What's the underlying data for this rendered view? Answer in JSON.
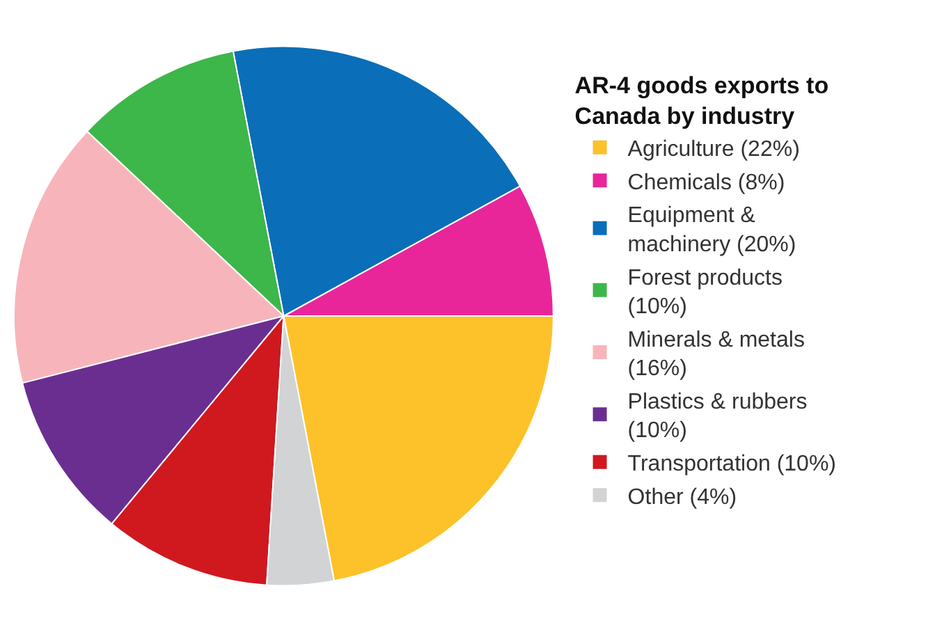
{
  "chart_data": {
    "type": "pie",
    "legend_title": "AR-4 goods exports to Canada by industry",
    "legend": "right",
    "categories": [
      "Agriculture (22%)",
      "Chemicals (8%)",
      "Equipment & machinery (20%)",
      "Forest products (10%)",
      "Minerals & metals (16%)",
      "Plastics & rubbers (10%)",
      "Transportation (10%)",
      "Other (4%)"
    ],
    "values": [
      22,
      8,
      20,
      10,
      16,
      10,
      10,
      4
    ],
    "colors": [
      "#fdc12a",
      "#e9259a",
      "#0a6eb8",
      "#3db64a",
      "#f7b5bb",
      "#6a2e91",
      "#d0181f",
      "#d1d3d5"
    ]
  }
}
